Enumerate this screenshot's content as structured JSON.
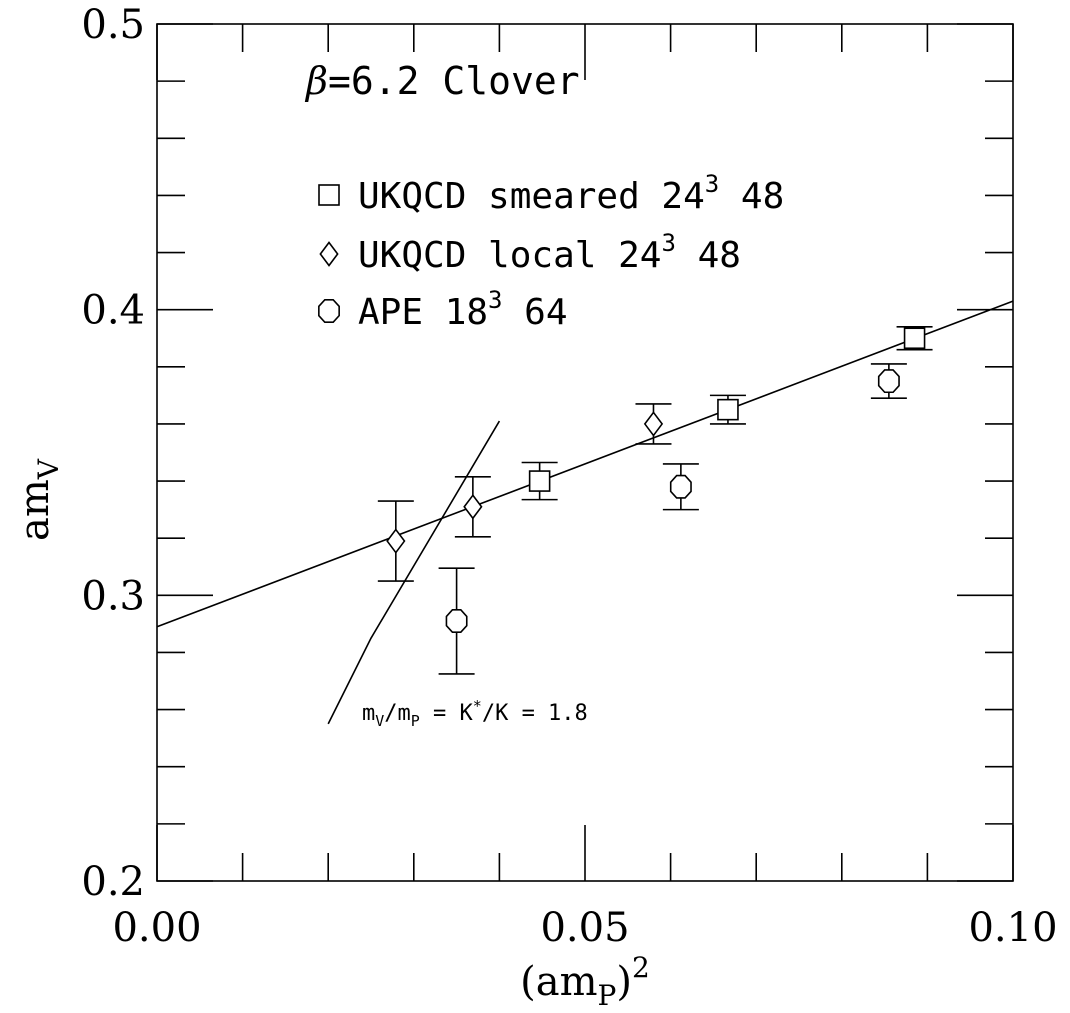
{
  "chart_data": {
    "type": "scatter",
    "title": "β=6.2 Clover",
    "title_symbol": "β",
    "title_rest": "=6.2 Clover",
    "xlabel": "(amP)²",
    "xlabel_main": "(am",
    "xlabel_sub": "P",
    "xlabel_close": ")",
    "xlabel_sup": "2",
    "ylabel": "amV",
    "ylabel_main": "am",
    "ylabel_sub": "V",
    "xlim": [
      0.0,
      0.1
    ],
    "ylim": [
      0.2,
      0.5
    ],
    "x_ticks": [
      {
        "value": 0.0,
        "label": "0.00"
      },
      {
        "value": 0.05,
        "label": "0.05"
      },
      {
        "value": 0.1,
        "label": "0.10"
      }
    ],
    "x_minor_step": 0.01,
    "y_ticks": [
      {
        "value": 0.2,
        "label": "0.2"
      },
      {
        "value": 0.3,
        "label": "0.3"
      },
      {
        "value": 0.4,
        "label": "0.4"
      },
      {
        "value": 0.5,
        "label": "0.5"
      }
    ],
    "y_minor_step": 0.02,
    "grid": false,
    "legend_position": "top-left",
    "series": [
      {
        "name": "UKQCD  smeared  24³ 48",
        "label_main": "UKQCD  smeared  24",
        "label_sup": "3",
        "label_end": " 48",
        "marker": "square",
        "points": [
          {
            "x": 0.0447,
            "y": 0.34,
            "err": 0.0065
          },
          {
            "x": 0.0667,
            "y": 0.365,
            "err": 0.005
          },
          {
            "x": 0.0885,
            "y": 0.39,
            "err": 0.004
          }
        ]
      },
      {
        "name": "UKQCD local  24³ 48",
        "label_main": "UKQCD local  24",
        "label_sup": "3",
        "label_end": " 48",
        "marker": "diamond",
        "points": [
          {
            "x": 0.0279,
            "y": 0.319,
            "err": 0.014
          },
          {
            "x": 0.0369,
            "y": 0.331,
            "err": 0.0105
          },
          {
            "x": 0.058,
            "y": 0.36,
            "err": 0.007
          }
        ]
      },
      {
        "name": "APE 18³ 64",
        "label_main": "APE 18",
        "label_sup": "3",
        "label_end": " 64",
        "marker": "octagon",
        "points": [
          {
            "x": 0.035,
            "y": 0.291,
            "err": 0.0185
          },
          {
            "x": 0.0612,
            "y": 0.338,
            "err": 0.008
          },
          {
            "x": 0.0855,
            "y": 0.375,
            "err": 0.006
          }
        ]
      }
    ],
    "lines": [
      {
        "x": [
          0.0,
          0.1
        ],
        "y": [
          0.289,
          0.403
        ]
      },
      {
        "x": [
          0.02,
          0.025,
          0.04
        ],
        "y": [
          0.255,
          0.285,
          0.361
        ]
      }
    ],
    "annotation": {
      "text": "mV/mP = K*/K = 1.8",
      "x": 0.0238,
      "y": 0.2535
    }
  }
}
